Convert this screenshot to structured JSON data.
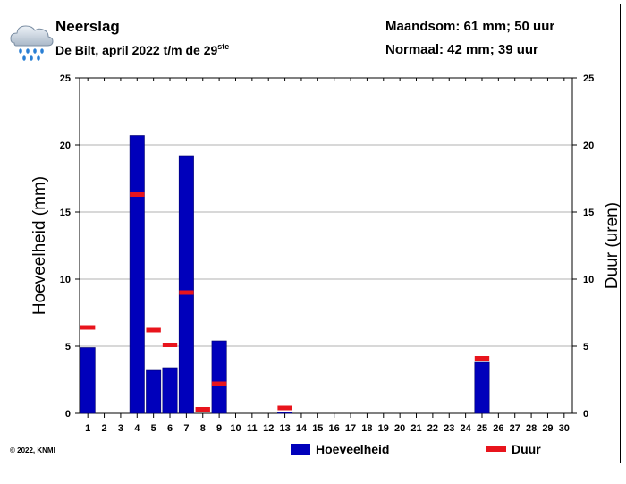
{
  "header": {
    "title": "Neerslag",
    "subtitle_main": "De Bilt, april 2022 t/m de 29",
    "subtitle_sup": "ste",
    "monthly_sum": "Maandsom: 61 mm; 50 uur",
    "normal": "Normaal: 42 mm; 39 uur",
    "icon": "rain-cloud-icon"
  },
  "footer": {
    "copyright": "© 2022, KNMI"
  },
  "legend": {
    "amount": "Hoeveelheid",
    "duration": "Duur"
  },
  "colors": {
    "bar": "#0000bb",
    "duration": "#e8141c",
    "grid": "#999999"
  },
  "chart_data": {
    "type": "bar",
    "ylabel": "Hoeveelheid (mm)",
    "y2label": "Duur (uren)",
    "ylim": [
      0,
      25
    ],
    "y2lim": [
      0,
      25
    ],
    "yticks": [
      0,
      5,
      10,
      15,
      20,
      25
    ],
    "grid": true,
    "legend_position": "bottom",
    "categories": [
      "1",
      "2",
      "3",
      "4",
      "5",
      "6",
      "7",
      "8",
      "9",
      "10",
      "11",
      "12",
      "13",
      "14",
      "15",
      "16",
      "17",
      "18",
      "19",
      "20",
      "21",
      "22",
      "23",
      "24",
      "25",
      "26",
      "27",
      "28",
      "29",
      "30"
    ],
    "series": [
      {
        "name": "Hoeveelheid",
        "kind": "bar",
        "values": [
          4.9,
          0,
          0,
          20.7,
          3.2,
          3.4,
          19.2,
          0,
          5.4,
          0,
          0,
          0,
          0.1,
          0,
          0,
          0,
          0,
          0,
          0,
          0,
          0,
          0,
          0,
          0,
          3.8,
          0,
          0,
          0,
          0,
          0
        ]
      },
      {
        "name": "Duur",
        "kind": "marker",
        "values": [
          6.4,
          null,
          null,
          16.3,
          6.2,
          5.1,
          9.0,
          0.3,
          2.2,
          null,
          null,
          null,
          0.4,
          null,
          null,
          null,
          null,
          null,
          null,
          null,
          null,
          null,
          null,
          null,
          4.1,
          null,
          null,
          null,
          null,
          null
        ]
      }
    ]
  }
}
